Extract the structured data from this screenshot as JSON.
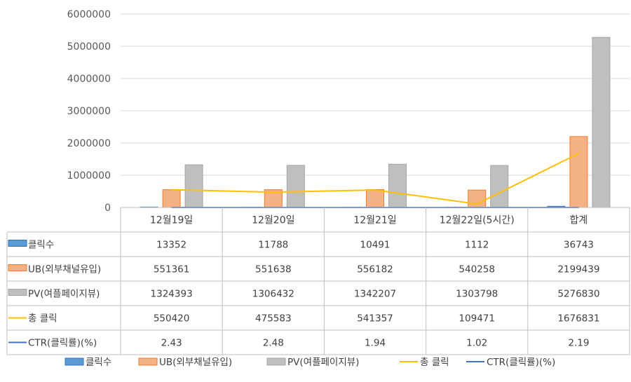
{
  "chart_data": {
    "type": "bar",
    "categories": [
      "12월19일",
      "12월20일",
      "12월21일",
      "12월22일(5시간)",
      "합계"
    ],
    "ylim": [
      0,
      6000000
    ],
    "yticks": [
      0,
      1000000,
      2000000,
      3000000,
      4000000,
      5000000,
      6000000
    ],
    "grid": true,
    "legend_position": "bottom",
    "data_table": true,
    "series": [
      {
        "name": "클릭수",
        "type": "bar",
        "color": "#5B9BD5",
        "values": [
          13352,
          11788,
          10491,
          1112,
          36743
        ],
        "labels": [
          "13352",
          "11788",
          "10491",
          "1112",
          "36743"
        ]
      },
      {
        "name": "UB(외부채널유입)",
        "type": "bar",
        "color": "#F4B183",
        "values": [
          551361,
          551638,
          556182,
          540258,
          2199439
        ],
        "labels": [
          "551361",
          "551638",
          "556182",
          "540258",
          "2199439"
        ]
      },
      {
        "name": "PV(여플페이지뷰)",
        "type": "bar",
        "color": "#BFBFBF",
        "values": [
          1324393,
          1306432,
          1342207,
          1303798,
          5276830
        ],
        "labels": [
          "1324393",
          "1306432",
          "1342207",
          "1303798",
          "5276830"
        ]
      },
      {
        "name": "총 클릭",
        "type": "line",
        "color": "#FFC000",
        "values": [
          550420,
          475583,
          541357,
          109471,
          1676831
        ],
        "labels": [
          "550420",
          "475583",
          "541357",
          "109471",
          "1676831"
        ]
      },
      {
        "name": "CTR(클릭률)(%)",
        "type": "line",
        "color": "#4472C4",
        "values": [
          2.43,
          2.48,
          1.94,
          1.02,
          2.19
        ],
        "labels": [
          "2.43",
          "2.48",
          "1.94",
          "1.02",
          "2.19"
        ]
      }
    ]
  }
}
